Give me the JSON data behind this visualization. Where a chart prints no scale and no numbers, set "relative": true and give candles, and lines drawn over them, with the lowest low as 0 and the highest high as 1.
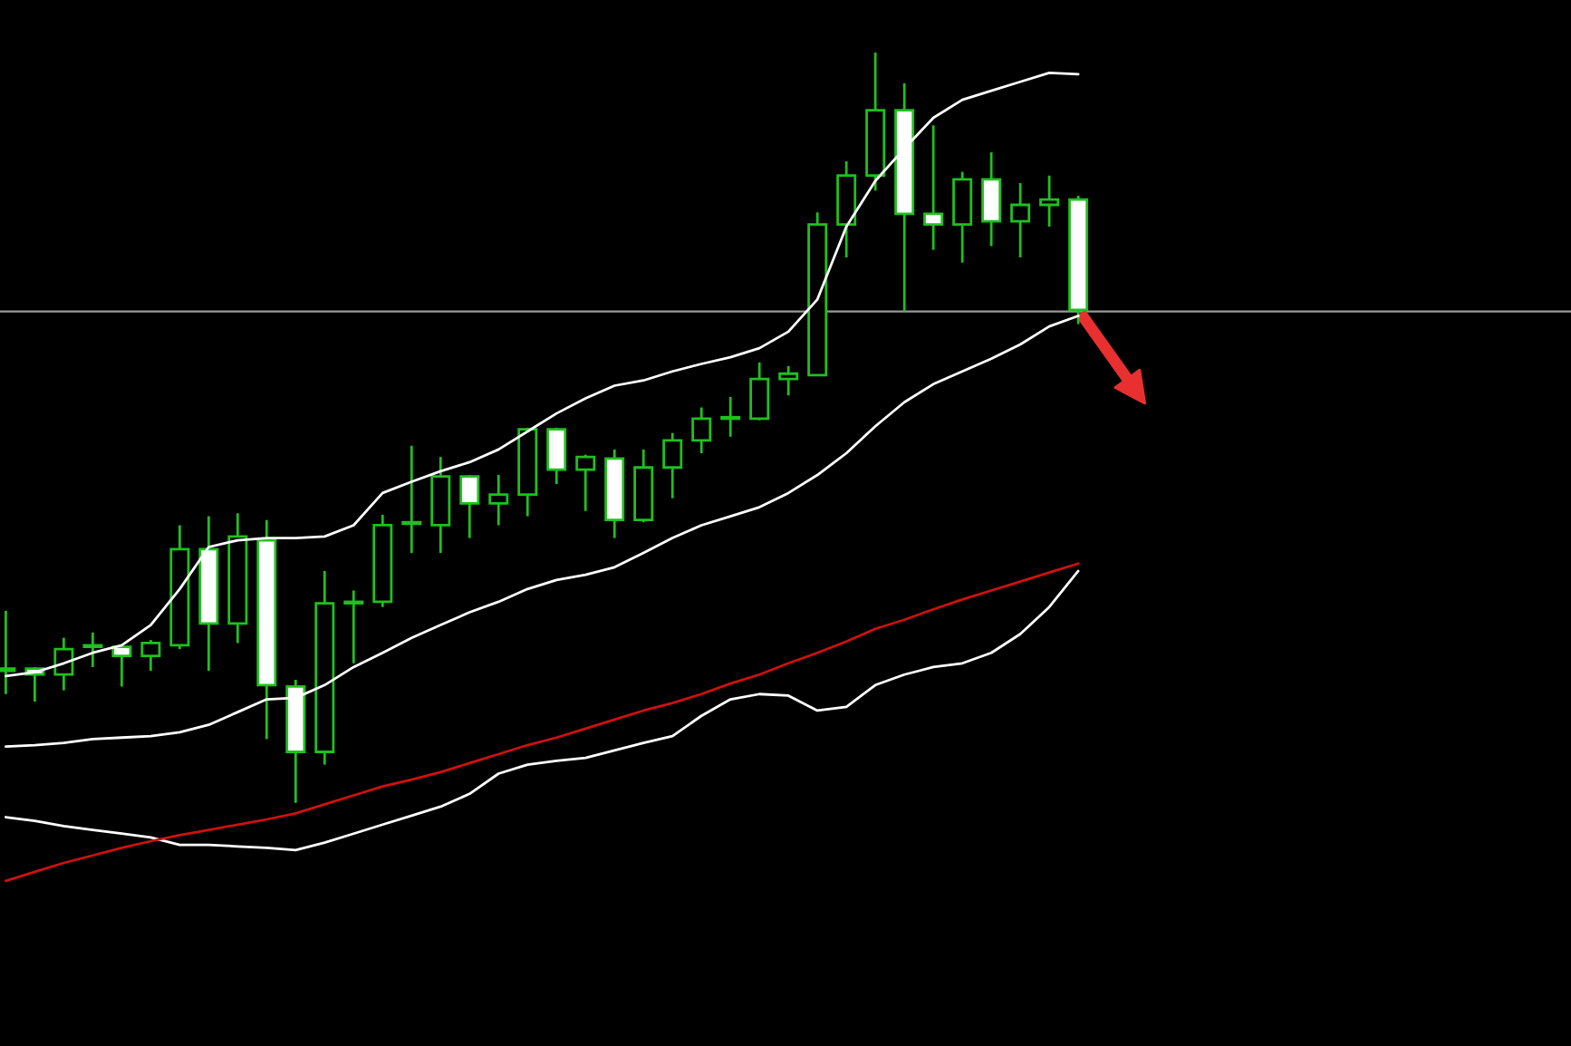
{
  "chart_data": {
    "type": "candlestick",
    "relative": true,
    "categories": [
      null,
      null,
      null,
      null,
      null,
      null,
      null,
      null,
      null,
      null,
      null,
      null,
      null,
      null,
      null,
      null,
      null,
      null,
      null,
      null,
      null,
      null,
      null,
      null,
      null,
      null,
      null,
      null,
      null,
      null,
      null,
      null,
      null,
      null,
      null,
      null,
      null,
      null
    ],
    "ohlc": [
      [
        0.176,
        0.256,
        0.145,
        0.179
      ],
      [
        0.179,
        0.181,
        0.135,
        0.171
      ],
      [
        0.171,
        0.22,
        0.15,
        0.205
      ],
      [
        0.208,
        0.227,
        0.181,
        0.21
      ],
      [
        0.208,
        0.208,
        0.155,
        0.196
      ],
      [
        0.196,
        0.217,
        0.176,
        0.213
      ],
      [
        0.21,
        0.37,
        0.205,
        0.338
      ],
      [
        0.338,
        0.382,
        0.176,
        0.239
      ],
      [
        0.239,
        0.386,
        0.213,
        0.355
      ],
      [
        0.35,
        0.377,
        0.085,
        0.157
      ],
      [
        0.155,
        0.164,
        0.0,
        0.068
      ],
      [
        0.068,
        0.309,
        0.051,
        0.266
      ],
      [
        0.266,
        0.283,
        0.186,
        0.268
      ],
      [
        0.268,
        0.384,
        0.261,
        0.37
      ],
      [
        0.372,
        0.476,
        0.333,
        0.374
      ],
      [
        0.37,
        0.461,
        0.333,
        0.435
      ],
      [
        0.435,
        0.437,
        0.353,
        0.399
      ],
      [
        0.399,
        0.437,
        0.37,
        0.411
      ],
      [
        0.411,
        0.5,
        0.382,
        0.498
      ],
      [
        0.498,
        0.5,
        0.425,
        0.444
      ],
      [
        0.444,
        0.464,
        0.389,
        0.461
      ],
      [
        0.459,
        0.471,
        0.353,
        0.377
      ],
      [
        0.377,
        0.471,
        0.374,
        0.447
      ],
      [
        0.447,
        0.493,
        0.406,
        0.483
      ],
      [
        0.483,
        0.527,
        0.466,
        0.512
      ],
      [
        0.512,
        0.541,
        0.488,
        0.514
      ],
      [
        0.512,
        0.587,
        0.51,
        0.565
      ],
      [
        0.565,
        0.582,
        0.543,
        0.572
      ],
      [
        0.57,
        0.787,
        0.57,
        0.771
      ],
      [
        0.771,
        0.855,
        0.727,
        0.836
      ],
      [
        0.836,
        1.0,
        0.816,
        0.923
      ],
      [
        0.923,
        0.959,
        0.655,
        0.785
      ],
      [
        0.785,
        0.903,
        0.737,
        0.771
      ],
      [
        0.771,
        0.841,
        0.72,
        0.831
      ],
      [
        0.831,
        0.867,
        0.742,
        0.775
      ],
      [
        0.775,
        0.826,
        0.727,
        0.797
      ],
      [
        0.797,
        0.836,
        0.768,
        0.804
      ],
      [
        0.804,
        0.809,
        0.638,
        0.657
      ]
    ],
    "series": [
      {
        "type": "line",
        "color": "#ffffff",
        "values": [
          0.169,
          0.174,
          0.186,
          0.2,
          0.21,
          0.237,
          0.285,
          0.341,
          0.35,
          0.353,
          0.353,
          0.355,
          0.37,
          0.413,
          0.428,
          0.442,
          0.454,
          0.471,
          0.495,
          0.519,
          0.539,
          0.556,
          0.563,
          0.575,
          0.585,
          0.594,
          0.606,
          0.628,
          0.671,
          0.768,
          0.829,
          0.872,
          0.913,
          0.937,
          0.949,
          0.961,
          0.973,
          0.971
        ]
      },
      {
        "type": "line",
        "color": "#ffffff",
        "values": [
          0.075,
          0.077,
          0.08,
          0.085,
          0.087,
          0.089,
          0.094,
          0.104,
          0.121,
          0.138,
          0.14,
          0.157,
          0.181,
          0.2,
          0.22,
          0.237,
          0.254,
          0.268,
          0.285,
          0.297,
          0.304,
          0.314,
          0.333,
          0.353,
          0.37,
          0.382,
          0.394,
          0.413,
          0.437,
          0.466,
          0.502,
          0.534,
          0.558,
          0.575,
          0.592,
          0.611,
          0.635,
          0.649
        ]
      },
      {
        "type": "line",
        "color": "#ffffff",
        "values": [
          -0.019,
          -0.024,
          -0.031,
          -0.036,
          -0.041,
          -0.046,
          -0.056,
          -0.056,
          -0.058,
          -0.06,
          -0.063,
          -0.053,
          -0.041,
          -0.029,
          -0.017,
          -0.005,
          0.012,
          0.039,
          0.051,
          0.056,
          0.06,
          0.07,
          0.08,
          0.089,
          0.116,
          0.138,
          0.145,
          0.143,
          0.123,
          0.128,
          0.157,
          0.171,
          0.181,
          0.186,
          0.2,
          0.225,
          0.261,
          0.309
        ]
      },
      {
        "type": "line",
        "color": "#d01010",
        "values": [
          -0.104,
          -0.092,
          -0.08,
          -0.07,
          -0.06,
          -0.051,
          -0.043,
          -0.036,
          -0.029,
          -0.022,
          -0.014,
          -0.002,
          0.01,
          0.022,
          0.031,
          0.041,
          0.053,
          0.065,
          0.077,
          0.087,
          0.099,
          0.111,
          0.123,
          0.133,
          0.145,
          0.159,
          0.171,
          0.186,
          0.2,
          0.215,
          0.232,
          0.244,
          0.258,
          0.271,
          0.283,
          0.295,
          0.307,
          0.319
        ]
      }
    ],
    "ref_lines": [
      {
        "axis": "y",
        "value": 0.655,
        "color": "#9a9a9a"
      }
    ]
  }
}
